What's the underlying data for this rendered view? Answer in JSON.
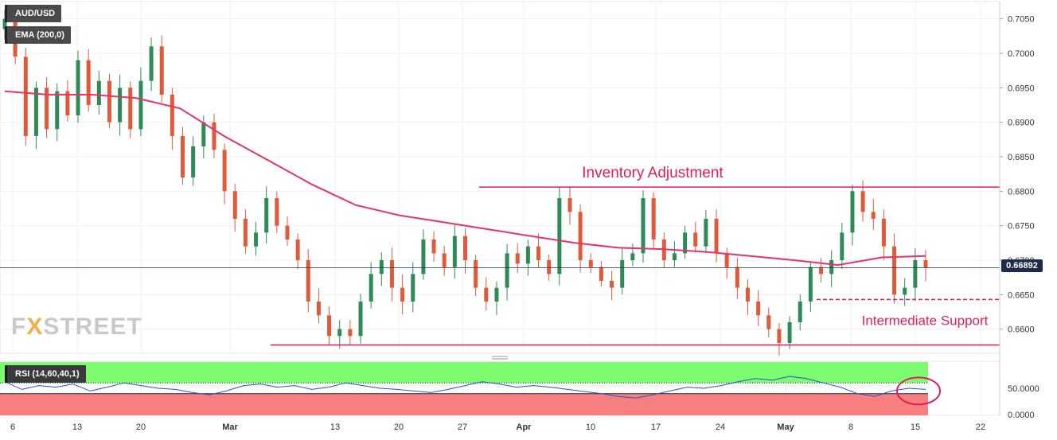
{
  "chart_data": {
    "type": "candlestick",
    "symbol": "AUD/USD",
    "indicator_label": "EMA (200,0)",
    "rsi_label": "RSI (14,60,40,1)",
    "last_price": "0.66892",
    "price_axis": {
      "ylim": [
        0.6565,
        0.7075
      ],
      "ticks": [
        "0.7050",
        "0.7000",
        "0.6950",
        "0.6900",
        "0.6850",
        "0.6800",
        "0.6750",
        "0.6700",
        "0.6650",
        "0.6600"
      ]
    },
    "rsi_axis": {
      "ylim": [
        0,
        100
      ],
      "ticks": [
        "50.0000",
        "0.0000"
      ],
      "upper": 60,
      "lower": 40
    },
    "x_ticks": [
      "6",
      "13",
      "20",
      "Mar",
      "13",
      "20",
      "27",
      "Apr",
      "10",
      "17",
      "24",
      "May",
      "8",
      "15",
      "22"
    ],
    "annotations": {
      "resistance_label": "Inventory Adjustment",
      "support_label": "Intermediate Support",
      "resistance_level": 0.6806,
      "intermediate_support_level": 0.6643,
      "bottom_support_level": 0.6577
    },
    "close_series": [
      0.705,
      0.6995,
      0.688,
      0.695,
      0.689,
      0.6945,
      0.691,
      0.699,
      0.6925,
      0.696,
      0.69,
      0.695,
      0.689,
      0.696,
      0.701,
      0.694,
      0.688,
      0.682,
      0.6865,
      0.69,
      0.686,
      0.68,
      0.676,
      0.672,
      0.674,
      0.679,
      0.675,
      0.673,
      0.67,
      0.664,
      0.662,
      0.659,
      0.66,
      0.659,
      0.664,
      0.668,
      0.67,
      0.666,
      0.664,
      0.668,
      0.673,
      0.671,
      0.669,
      0.6735,
      0.67,
      0.666,
      0.664,
      0.666,
      0.671,
      0.6695,
      0.672,
      0.67,
      0.668,
      0.679,
      0.677,
      0.67,
      0.669,
      0.667,
      0.666,
      0.67,
      0.671,
      0.679,
      0.673,
      0.67,
      0.671,
      0.674,
      0.672,
      0.676,
      0.671,
      0.669,
      0.666,
      0.664,
      0.662,
      0.66,
      0.658,
      0.661,
      0.664,
      0.669,
      0.668,
      0.67,
      0.674,
      0.68,
      0.677,
      0.676,
      0.672,
      0.665,
      0.666,
      0.67,
      0.6689
    ],
    "ema_series": [
      0.6945,
      0.694,
      0.694,
      0.6935,
      0.692,
      0.688,
      0.6845,
      0.681,
      0.678,
      0.6765,
      0.6755,
      0.6745,
      0.6735,
      0.6725,
      0.6718,
      0.6716,
      0.6712,
      0.6706,
      0.67,
      0.6693,
      0.6704,
      0.6706
    ],
    "rsi_series": [
      62,
      48,
      55,
      52,
      58,
      45,
      52,
      60,
      55,
      50,
      48,
      42,
      38,
      45,
      55,
      58,
      52,
      55,
      48,
      52,
      60,
      55,
      50,
      48,
      45,
      42,
      48,
      55,
      62,
      58,
      52,
      55,
      52,
      48,
      44,
      40,
      35,
      32,
      38,
      45,
      52,
      50,
      55,
      62,
      68,
      65,
      72,
      68,
      60,
      52,
      40,
      35,
      45,
      50,
      48
    ],
    "colors": {
      "bull_candle": "#2e8b57",
      "bear_candle": "#e05a3a",
      "ema_line": "#e5326b",
      "annotation": "#e11d5a",
      "rsi_line": "#2a4fd6",
      "rsi_overbought_zone": "#7cfc6e",
      "rsi_oversold_zone": "#f87f7f",
      "price_tag": "#1c2b4a"
    }
  }
}
